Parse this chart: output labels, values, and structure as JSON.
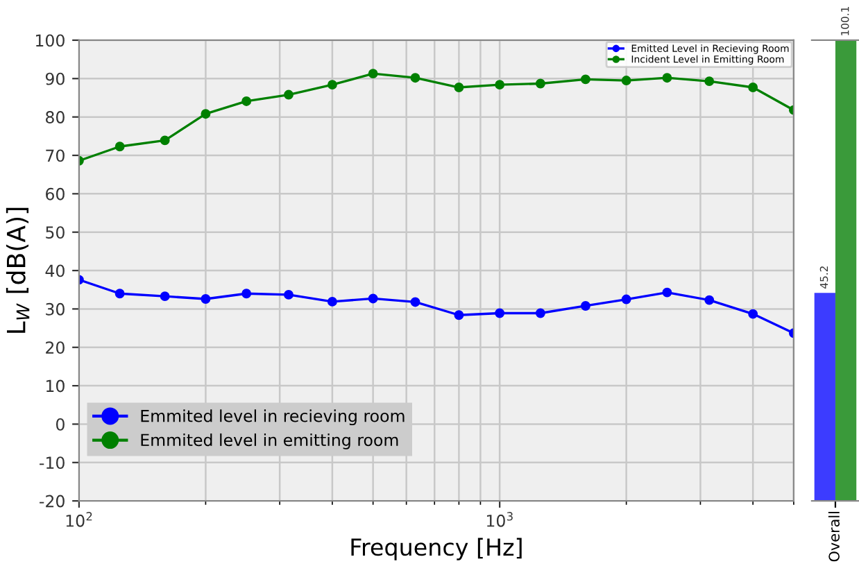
{
  "chart_data": [
    {
      "type": "line",
      "xlabel": "Frequency [Hz]",
      "ylabel": "L$_{W}$ [dB(A)]",
      "log": "x",
      "x": [
        100,
        125,
        160,
        200,
        250,
        315,
        400,
        500,
        630,
        800,
        1000,
        1250,
        1600,
        2000,
        2500,
        3150,
        4000,
        5000
      ],
      "series": [
        {
          "name": "Emitted Level in Recieving Room",
          "color": "#0000ff",
          "values": [
            37.6,
            34.0,
            33.3,
            32.6,
            34.0,
            33.7,
            31.9,
            32.7,
            31.8,
            28.4,
            28.9,
            28.9,
            30.8,
            32.5,
            34.3,
            32.3,
            28.7,
            23.7
          ]
        },
        {
          "name": "Incident Level in Emitting Room",
          "color": "#008000",
          "values": [
            68.6,
            72.3,
            73.9,
            80.8,
            84.1,
            85.8,
            88.4,
            91.3,
            90.2,
            87.7,
            88.4,
            88.7,
            89.8,
            89.5,
            90.2,
            89.3,
            87.7,
            81.8
          ]
        }
      ],
      "annotations": [
        "Emmited level in recieving room",
        "Emmited level in emitting room"
      ],
      "xlim": [
        100,
        5000
      ],
      "xticks": [
        {
          "value": 100,
          "label": "10$^{2}$"
        },
        {
          "value": 1000,
          "label": "10$^{3}$"
        }
      ],
      "ylim": [
        -20,
        100
      ],
      "yticks": [
        -20,
        -10,
        0,
        10,
        20,
        30,
        40,
        50,
        60,
        70,
        80,
        90,
        100
      ],
      "grid": true,
      "legend": "top right",
      "marker": "circle",
      "line_style": "solid"
    },
    {
      "type": "bar",
      "categories": [
        "Overall"
      ],
      "series": [
        {
          "color": "#3c3cff",
          "values": [
            45.2
          ]
        },
        {
          "color": "#3a9a3a",
          "values": [
            100.1
          ]
        }
      ],
      "data_labels": true,
      "tick_labels": "x"
    }
  ]
}
